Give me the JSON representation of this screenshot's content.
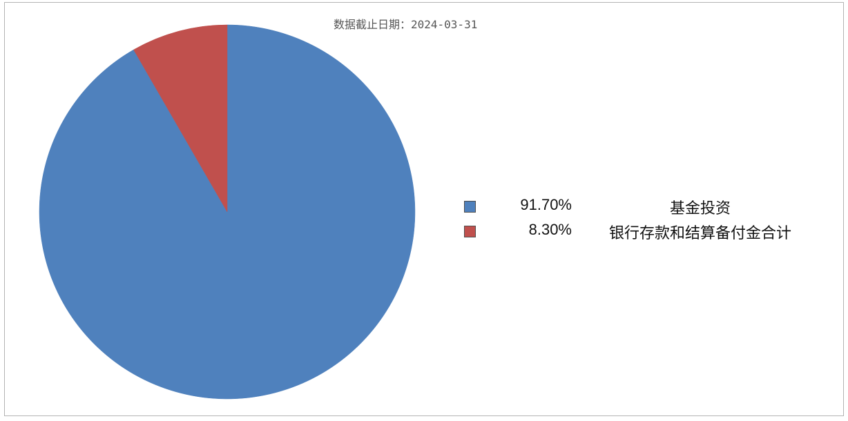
{
  "header": {
    "date_text": "数据截止日期：2024-03-31"
  },
  "chart_data": {
    "type": "pie",
    "title": "",
    "slices": [
      {
        "label": "基金投资",
        "value": 91.7,
        "percent_text": "91.70%",
        "color": "#4f81bd"
      },
      {
        "label": "银行存款和结算备付金合计",
        "value": 8.3,
        "percent_text": "8.30%",
        "color": "#c0504d"
      }
    ],
    "start_angle": "12 o'clock",
    "direction": "clockwise",
    "legend_position": "right"
  }
}
